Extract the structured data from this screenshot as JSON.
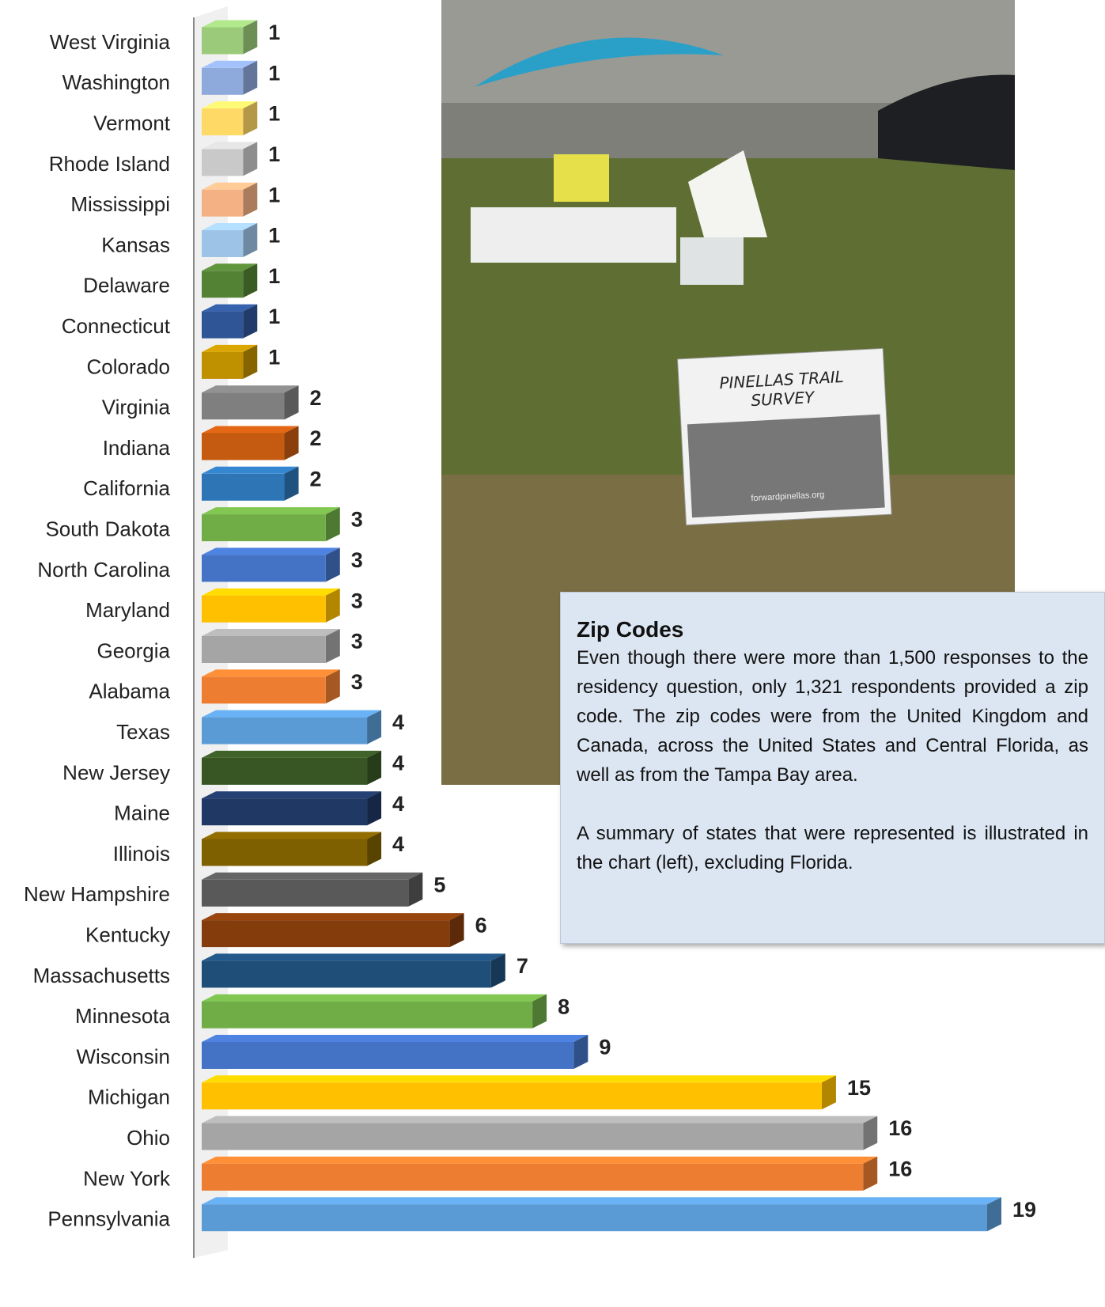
{
  "chart_data": {
    "type": "bar3d",
    "categories": [
      "West Virginia",
      "Washington",
      "Vermont",
      "Rhode Island",
      "Mississippi",
      "Kansas",
      "Delaware",
      "Connecticut",
      "Colorado",
      "Virginia",
      "Indiana",
      "California",
      "South Dakota",
      "North Carolina",
      "Maryland",
      "Georgia",
      "Alabama",
      "Texas",
      "New Jersey",
      "Maine",
      "Illinois",
      "New Hampshire",
      "Kentucky",
      "Massachusetts",
      "Minnesota",
      "Wisconsin",
      "Michigan",
      "Ohio",
      "New York",
      "Pennsylvania"
    ],
    "values": [
      1,
      1,
      1,
      1,
      1,
      1,
      1,
      1,
      1,
      2,
      2,
      2,
      3,
      3,
      3,
      3,
      3,
      4,
      4,
      4,
      4,
      5,
      6,
      7,
      8,
      9,
      15,
      16,
      16,
      19
    ],
    "colors": [
      "#9bcb7a",
      "#8ea9db",
      "#ffd966",
      "#c9c9c9",
      "#f4b183",
      "#9dc3e6",
      "#548235",
      "#2f5597",
      "#bf9000",
      "#7f7f7f",
      "#c55a11",
      "#2e75b6",
      "#70ad47",
      "#4472c4",
      "#ffc000",
      "#a5a5a5",
      "#ed7d31",
      "#5b9bd5",
      "#375623",
      "#203864",
      "#7f6000",
      "#595959",
      "#843c0c",
      "#1f4e79",
      "#70ad47",
      "#4472c4",
      "#ffc000",
      "#a5a5a5",
      "#ed7d31",
      "#5b9bd5"
    ]
  },
  "photo": {
    "sign_title": "PINELLAS TRAIL SURVEY",
    "sign_url": "forwardpinellas.org"
  },
  "text_box": {
    "heading": "Zip Codes",
    "paragraphs": [
      "Even though there were more than 1,500 responses to the residency question, only 1,321 respondents provided a zip code.  The zip codes were from the United Kingdom and Canada, across the United States and Central Florida, as well as from the Tampa Bay area.",
      "A summary of states that were represented is illustrated in the chart (left), excluding Florida."
    ]
  }
}
